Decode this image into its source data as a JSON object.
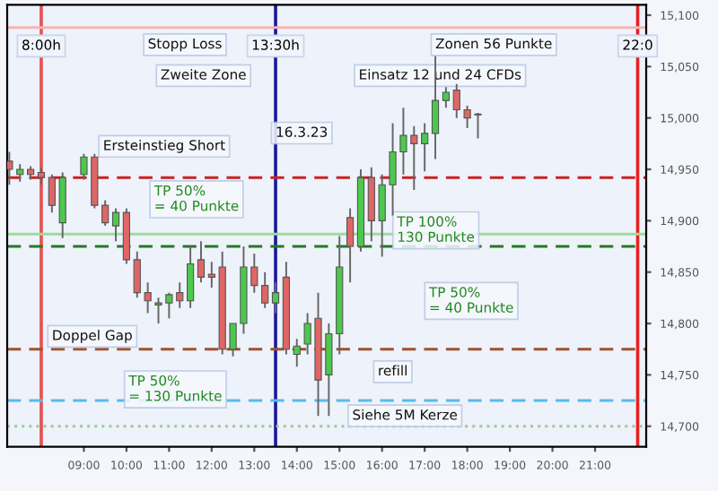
{
  "chart_data": {
    "type": "candlestick",
    "x": [
      7.25,
      7.5,
      7.75,
      8.0,
      8.25,
      8.5,
      9.0,
      9.25,
      9.5,
      9.75,
      10.0,
      10.25,
      10.5,
      10.75,
      11.0,
      11.25,
      11.5,
      11.75,
      12.0,
      12.25,
      12.5,
      12.75,
      13.0,
      13.25,
      13.5,
      13.75,
      14.0,
      14.25,
      14.5,
      14.75,
      15.0,
      15.25,
      15.5,
      15.75,
      16.0,
      16.25,
      16.5,
      16.75,
      17.0,
      17.25,
      17.5,
      17.75,
      18.0,
      18.25
    ],
    "ohlc": [
      [
        14958,
        14967,
        14935,
        14950
      ],
      [
        14945,
        14955,
        14938,
        14950
      ],
      [
        14950,
        14953,
        14940,
        14945
      ],
      [
        14947,
        14952,
        14935,
        14942
      ],
      [
        14942,
        14945,
        14908,
        14915
      ],
      [
        14898,
        14947,
        14883,
        14942
      ],
      [
        14945,
        14965,
        14940,
        14962
      ],
      [
        14962,
        14965,
        14912,
        14915
      ],
      [
        14915,
        14920,
        14895,
        14898
      ],
      [
        14895,
        14912,
        14880,
        14908
      ],
      [
        14908,
        14912,
        14858,
        14862
      ],
      [
        14862,
        14870,
        14825,
        14830
      ],
      [
        14830,
        14840,
        14810,
        14822
      ],
      [
        14818,
        14825,
        14800,
        14820
      ],
      [
        14820,
        14830,
        14805,
        14828
      ],
      [
        14830,
        14840,
        14815,
        14822
      ],
      [
        14822,
        14875,
        14815,
        14858
      ],
      [
        14862,
        14880,
        14840,
        14845
      ],
      [
        14848,
        14860,
        14835,
        14845
      ],
      [
        14855,
        14870,
        14770,
        14775
      ],
      [
        14775,
        14800,
        14768,
        14800
      ],
      [
        14800,
        14875,
        14790,
        14855
      ],
      [
        14855,
        14868,
        14830,
        14837
      ],
      [
        14837,
        14850,
        14815,
        14820
      ],
      [
        14820,
        14840,
        14810,
        14830
      ],
      [
        14845,
        14860,
        14770,
        14775
      ],
      [
        14770,
        14785,
        14758,
        14778
      ],
      [
        14780,
        14810,
        14770,
        14800
      ],
      [
        14805,
        14830,
        14710,
        14745
      ],
      [
        14750,
        14800,
        14710,
        14790
      ],
      [
        14790,
        14885,
        14770,
        14855
      ],
      [
        14903,
        14912,
        14840,
        14875
      ],
      [
        14875,
        14950,
        14870,
        14942
      ],
      [
        14942,
        14952,
        14880,
        14900
      ],
      [
        14900,
        14945,
        14865,
        14935
      ],
      [
        14935,
        14995,
        14905,
        14967
      ],
      [
        14967,
        15010,
        14945,
        14983
      ],
      [
        14983,
        14992,
        14930,
        14975
      ],
      [
        14975,
        14995,
        14948,
        14985
      ],
      [
        14985,
        15060,
        14960,
        15017
      ],
      [
        15017,
        15030,
        15010,
        15025
      ],
      [
        15027,
        15033,
        15000,
        15008
      ],
      [
        15008,
        15012,
        14990,
        15000
      ],
      [
        15003,
        15005,
        14980,
        15003
      ]
    ],
    "xlim": [
      7.2,
      22.2
    ],
    "xticks": [
      {
        "value": 9,
        "label": "09:00"
      },
      {
        "value": 10,
        "label": "10:00"
      },
      {
        "value": 11,
        "label": "11:00"
      },
      {
        "value": 12,
        "label": "12:00"
      },
      {
        "value": 13,
        "label": "13:00"
      },
      {
        "value": 14,
        "label": "14:00"
      },
      {
        "value": 15,
        "label": "15:00"
      },
      {
        "value": 16,
        "label": "16:00"
      },
      {
        "value": 17,
        "label": "17:00"
      },
      {
        "value": 18,
        "label": "18:00"
      },
      {
        "value": 19,
        "label": "19:00"
      },
      {
        "value": 20,
        "label": "20:00"
      },
      {
        "value": 21,
        "label": "21:00"
      }
    ],
    "ylim": [
      14680,
      15110
    ],
    "yticks": [
      {
        "value": 14700,
        "label": "14,700"
      },
      {
        "value": 14750,
        "label": "14,750"
      },
      {
        "value": 14800,
        "label": "14,800"
      },
      {
        "value": 14850,
        "label": "14,850"
      },
      {
        "value": 14900,
        "label": "14,900"
      },
      {
        "value": 14950,
        "label": "14,950"
      },
      {
        "value": 15000,
        "label": "15,000"
      },
      {
        "value": 15050,
        "label": "15,050"
      },
      {
        "value": 15100,
        "label": "15,100"
      }
    ],
    "grid": false,
    "ref_lines": [
      {
        "axis": "x",
        "value": 8.0,
        "label": "8:00h",
        "color": "#e85050",
        "line_style": "solid"
      },
      {
        "axis": "x",
        "value": 13.5,
        "label": "13:30h",
        "color": "#1a1a9a",
        "line_style": "solid"
      },
      {
        "axis": "x",
        "value": 22.0,
        "label": "22:0",
        "color": "#e82020",
        "line_style": "solid"
      },
      {
        "axis": "y",
        "value": 14942,
        "label": null,
        "color": "#cc2222",
        "line_style": "dashed"
      },
      {
        "axis": "y",
        "value": 14875,
        "label": null,
        "color": "#227a22",
        "line_style": "dashed"
      },
      {
        "axis": "y",
        "value": 14775,
        "label": null,
        "color": "#a0522d",
        "line_style": "dashed"
      },
      {
        "axis": "y",
        "value": 14725,
        "label": null,
        "color": "#55bbee",
        "line_style": "dashed"
      },
      {
        "axis": "y",
        "value": 14887,
        "label": null,
        "color": "#99dd99",
        "line_style": "solid"
      },
      {
        "axis": "y",
        "value": 14700,
        "label": null,
        "color": "#99cc99",
        "line_style": "dotted"
      },
      {
        "axis": "y",
        "value": 15088,
        "label": null,
        "color": "#f5b5b5",
        "line_style": "solid"
      }
    ],
    "annotations": [
      "Stopp Loss",
      "Zweite Zone",
      "16.3.23",
      "Ersteinstieg Short",
      "TP 50%\n= 40 Punkte",
      "Doppel Gap",
      "TP 50%\n= 130 Punkte",
      "TP 50%\n= 40 Punkte",
      "Einsatz 12 und 24 CFDs",
      "Zonen 56 Punkte",
      "TP 100%\n130 Punkte",
      "refill",
      "Siehe 5M Kerze"
    ]
  }
}
